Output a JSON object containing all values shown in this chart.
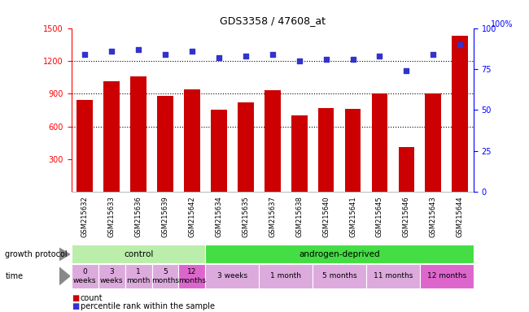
{
  "title": "GDS3358 / 47608_at",
  "samples": [
    "GSM215632",
    "GSM215633",
    "GSM215636",
    "GSM215639",
    "GSM215642",
    "GSM215634",
    "GSM215635",
    "GSM215637",
    "GSM215638",
    "GSM215640",
    "GSM215641",
    "GSM215645",
    "GSM215646",
    "GSM215643",
    "GSM215644"
  ],
  "counts": [
    840,
    1010,
    1060,
    880,
    940,
    750,
    820,
    930,
    700,
    770,
    760,
    900,
    410,
    900,
    1430
  ],
  "percentiles": [
    84,
    86,
    87,
    84,
    86,
    82,
    83,
    84,
    80,
    81,
    81,
    83,
    74,
    84,
    90
  ],
  "ylim_left": [
    0,
    1500
  ],
  "ylim_right": [
    0,
    100
  ],
  "yticks_left": [
    300,
    600,
    900,
    1200,
    1500
  ],
  "yticks_right": [
    0,
    25,
    50,
    75,
    100
  ],
  "bar_color": "#cc0000",
  "dot_color": "#3333cc",
  "protocol_groups": [
    {
      "label": "control",
      "start": 0,
      "end": 5,
      "color": "#bbeeaa"
    },
    {
      "label": "androgen-deprived",
      "start": 5,
      "end": 15,
      "color": "#44dd44"
    }
  ],
  "time_groups": [
    {
      "label": "0\nweeks",
      "start": 0,
      "end": 1,
      "color": "#ddaadd"
    },
    {
      "label": "3\nweeks",
      "start": 1,
      "end": 2,
      "color": "#ddaadd"
    },
    {
      "label": "1\nmonth",
      "start": 2,
      "end": 3,
      "color": "#ddaadd"
    },
    {
      "label": "5\nmonths",
      "start": 3,
      "end": 4,
      "color": "#ddaadd"
    },
    {
      "label": "12\nmonths",
      "start": 4,
      "end": 5,
      "color": "#dd66cc"
    },
    {
      "label": "3 weeks",
      "start": 5,
      "end": 7,
      "color": "#ddaadd"
    },
    {
      "label": "1 month",
      "start": 7,
      "end": 9,
      "color": "#ddaadd"
    },
    {
      "label": "5 months",
      "start": 9,
      "end": 11,
      "color": "#ddaadd"
    },
    {
      "label": "11 months",
      "start": 11,
      "end": 13,
      "color": "#ddaadd"
    },
    {
      "label": "12 months",
      "start": 13,
      "end": 15,
      "color": "#dd66cc"
    }
  ],
  "bg_color": "#ffffff",
  "xtick_bg_color": "#cccccc",
  "left_label_color": "#888888"
}
